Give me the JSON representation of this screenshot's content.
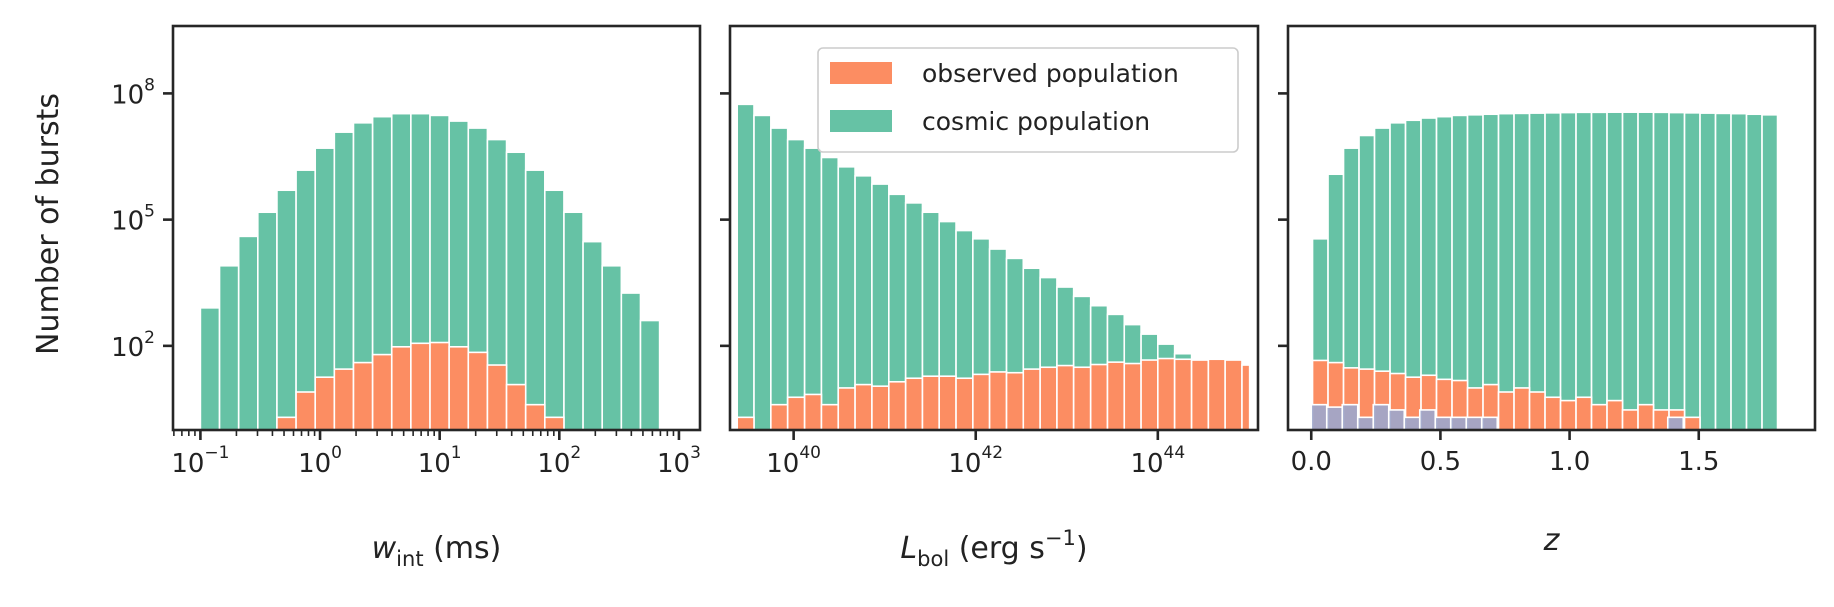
{
  "chart_data": [
    {
      "type": "bar",
      "xscale": "log",
      "yscale": "log",
      "xlabel": "w_int (ms)",
      "ylabel": "Number of bursts",
      "xlim": [
        0.059,
        1500
      ],
      "ylim": [
        1,
        4000000000
      ],
      "xticks": [
        0.1,
        1,
        10,
        100,
        1000
      ],
      "xtick_labels": [
        {
          "base": "10",
          "exp": "−1"
        },
        {
          "base": "10",
          "exp": "0"
        },
        {
          "base": "10",
          "exp": "1"
        },
        {
          "base": "10",
          "exp": "2"
        },
        {
          "base": "10",
          "exp": "3"
        }
      ],
      "yticks": [
        100,
        100000,
        100000000
      ],
      "ytick_labels": [
        {
          "base": "10",
          "exp": "2"
        },
        {
          "base": "10",
          "exp": "5"
        },
        {
          "base": "10",
          "exp": "8"
        }
      ],
      "bin_edges": [
        0.1,
        0.1445,
        0.2089,
        0.3019,
        0.4363,
        0.6306,
        0.9113,
        1.317,
        1.9035,
        2.751,
        3.9757,
        5.7458,
        8.3039,
        12.001,
        17.344,
        25.066,
        36.226,
        52.354,
        75.663,
        109.35,
        158.03,
        228.39,
        330.08,
        477.03,
        689.41
      ],
      "series": [
        {
          "name": "cosmic population",
          "color": "#66c2a5",
          "values": [
            800,
            8000,
            40000,
            150000,
            500000,
            1500000,
            5000000,
            12000000,
            20000000,
            28000000,
            33000000,
            33000000,
            30000000,
            22000000,
            15000000,
            8000000,
            4000000,
            1500000,
            500000,
            150000,
            30000,
            8000,
            1800,
            400
          ]
        },
        {
          "name": "observed population",
          "color": "#fc8d62",
          "values": [
            0,
            0,
            0,
            0,
            2,
            8,
            18,
            28,
            40,
            62,
            95,
            115,
            120,
            95,
            70,
            35,
            12,
            4,
            2,
            0,
            0,
            0,
            0,
            0
          ]
        }
      ]
    },
    {
      "type": "bar",
      "xscale": "log",
      "yscale": "log",
      "xlabel": "L_bol (erg s^−1)",
      "xlim": [
        2e+39,
        1.26e+45
      ],
      "ylim": [
        1,
        4000000000
      ],
      "xticks": [
        1e+40,
        1e+42,
        1e+44
      ],
      "xtick_labels": [
        {
          "base": "10",
          "exp": "40"
        },
        {
          "base": "10",
          "exp": "42"
        },
        {
          "base": "10",
          "exp": "44"
        }
      ],
      "bin_edges": [
        2.4e+39,
        3.67e+39,
        5.62e+39,
        8.6e+39,
        1.32e+40,
        2.02e+40,
        3.09e+40,
        4.73e+40,
        7.24e+40,
        1.11e+41,
        1.7e+41,
        2.6e+41,
        3.97e+41,
        6.08e+41,
        9.3e+41,
        1.42e+42,
        2.18e+42,
        3.33e+42,
        5.1e+42,
        7.8e+42,
        1.19e+43,
        1.83e+43,
        2.8e+43,
        4.28e+43,
        6.55e+43,
        1e+44,
        1.53e+44,
        2.35e+44,
        3.59e+44,
        5.49e+44,
        8.4e+44,
        1.02e+45
      ],
      "series": [
        {
          "name": "cosmic population",
          "color": "#66c2a5",
          "values": [
            55000000,
            30000000,
            15000000,
            8000000,
            5000000,
            3000000,
            1800000,
            1100000,
            700000,
            400000,
            250000,
            150000,
            90000,
            55000,
            35000,
            20000,
            12000,
            7000,
            4200,
            2500,
            1500,
            900,
            560,
            320,
            190,
            110,
            65,
            40,
            30,
            16,
            7
          ]
        },
        {
          "name": "observed population",
          "color": "#fc8d62",
          "values": [
            2,
            1,
            4,
            6,
            7,
            4,
            10,
            12,
            11,
            14,
            17,
            19,
            19,
            17,
            21,
            24,
            23,
            28,
            31,
            34,
            31,
            36,
            41,
            38,
            46,
            50,
            48,
            46,
            48,
            46,
            35
          ]
        }
      ],
      "legend": {
        "position": "upper right",
        "entries": [
          {
            "label": "observed population",
            "color": "#fc8d62"
          },
          {
            "label": "cosmic population",
            "color": "#66c2a5"
          }
        ]
      }
    },
    {
      "type": "bar",
      "xscale": "linear",
      "yscale": "log",
      "xlabel": "z",
      "xlim": [
        -0.09,
        1.95
      ],
      "ylim": [
        1,
        4000000000
      ],
      "xticks": [
        0.0,
        0.5,
        1.0,
        1.5
      ],
      "xtick_labels": [
        "0.0",
        "0.5",
        "1.0",
        "1.5"
      ],
      "bin_edges": [
        0.005,
        0.065,
        0.125,
        0.185,
        0.245,
        0.305,
        0.365,
        0.425,
        0.485,
        0.545,
        0.605,
        0.665,
        0.725,
        0.785,
        0.845,
        0.905,
        0.965,
        1.025,
        1.085,
        1.145,
        1.205,
        1.265,
        1.325,
        1.385,
        1.445,
        1.505,
        1.565,
        1.625,
        1.685,
        1.745,
        1.805
      ],
      "series": [
        {
          "name": "cosmic population",
          "color": "#66c2a5",
          "values": [
            35000,
            1200000,
            5000000,
            10000000,
            15000000,
            20000000,
            23000000,
            26000000,
            28000000,
            30000000,
            31000000,
            32000000,
            33000000,
            33500000,
            34000000,
            34500000,
            35000000,
            35500000,
            35500000,
            35800000,
            35800000,
            35800000,
            35500000,
            35000000,
            34500000,
            34000000,
            33500000,
            33000000,
            32000000,
            31000000
          ]
        },
        {
          "name": "observed population",
          "color": "#fc8d62",
          "values": [
            45,
            40,
            30,
            28,
            25,
            22,
            18,
            20,
            16,
            15,
            10,
            12,
            8,
            10,
            8,
            6,
            5,
            6,
            4,
            5,
            3,
            4,
            3,
            3,
            2,
            1,
            1,
            1,
            1,
            0
          ]
        }
      ],
      "detected_bursts": {
        "color": "#9ea7cb",
        "bin_edges": [
          0.0,
          0.06,
          0.12,
          0.18,
          0.24,
          0.3,
          0.36,
          0.42,
          0.48,
          0.54,
          0.6,
          0.66,
          0.72,
          0.78,
          0.84,
          0.9,
          0.96,
          1.02,
          1.08,
          1.14,
          1.2,
          1.26,
          1.32,
          1.38,
          1.44,
          1.5,
          1.56,
          1.62,
          1.68,
          1.74,
          1.8,
          1.86
        ],
        "values": [
          4,
          3.5,
          4,
          2,
          4,
          3,
          2,
          3,
          2,
          2,
          2,
          2,
          0,
          1,
          0,
          0,
          1,
          0,
          1,
          0,
          0,
          0,
          1,
          2,
          0,
          1,
          1,
          0,
          1,
          0,
          1
        ]
      }
    }
  ]
}
